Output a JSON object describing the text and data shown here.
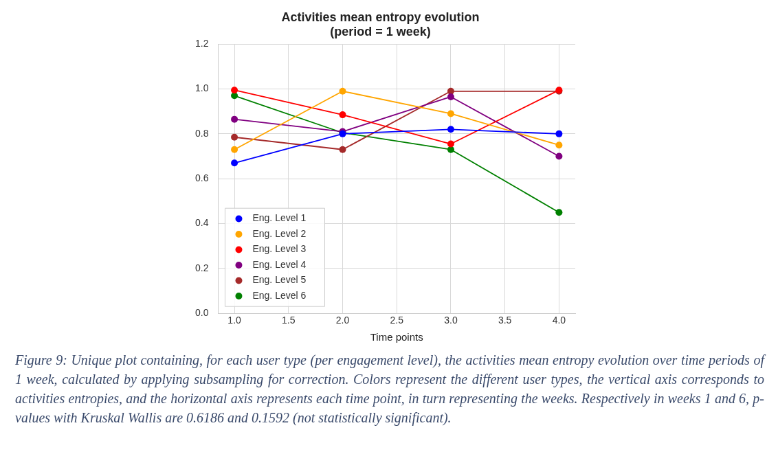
{
  "chart_data": {
    "type": "line",
    "title": "Activities mean entropy evolution\n(period = 1 week)",
    "xlabel": "Time points",
    "x": [
      1,
      2,
      3,
      4
    ],
    "series": [
      {
        "name": "Eng. Level 1",
        "color": "#0000ff",
        "values": [
          0.67,
          0.8,
          0.82,
          0.8
        ]
      },
      {
        "name": "Eng. Level 2",
        "color": "#ffa500",
        "values": [
          0.73,
          0.99,
          0.89,
          0.75
        ]
      },
      {
        "name": "Eng. Level 3",
        "color": "#ff0000",
        "values": [
          0.995,
          0.885,
          0.755,
          0.995
        ]
      },
      {
        "name": "Eng. Level 4",
        "color": "#800080",
        "values": [
          0.865,
          0.81,
          0.965,
          0.7
        ]
      },
      {
        "name": "Eng. Level 5",
        "color": "#a52a2a",
        "values": [
          0.785,
          0.73,
          0.99,
          0.99
        ]
      },
      {
        "name": "Eng. Level 6",
        "color": "#008000",
        "values": [
          0.97,
          0.805,
          0.73,
          0.45
        ]
      }
    ],
    "xlim": [
      0.85,
      4.15
    ],
    "xticks": [
      {
        "value": 1,
        "label": "1.0"
      },
      {
        "value": 1.5,
        "label": "1.5"
      },
      {
        "value": 2,
        "label": "2.0"
      },
      {
        "value": 2.5,
        "label": "2.5"
      },
      {
        "value": 3,
        "label": "3.0"
      },
      {
        "value": 3.5,
        "label": "3.5"
      },
      {
        "value": 4,
        "label": "4.0"
      }
    ],
    "ylim": [
      0,
      1.2
    ],
    "yticks": [
      {
        "value": 0,
        "label": "0.0"
      },
      {
        "value": 0.2,
        "label": "0.2"
      },
      {
        "value": 0.4,
        "label": "0.4"
      },
      {
        "value": 0.6,
        "label": "0.6"
      },
      {
        "value": 0.8,
        "label": "0.8"
      },
      {
        "value": 1,
        "label": "1.0"
      },
      {
        "value": 1.2,
        "label": "1.2"
      }
    ],
    "grid": true,
    "legend": "bottom left",
    "marker": "circle",
    "line_style": "solid",
    "annotations": [
      "Figure 9: Unique plot containing, for each user type (per engagement level), the activities mean entropy evolution over time periods of 1 week, calculated by applying subsampling for correction. Colors represent the different user types, the vertical axis corresponds to activities entropies, and the horizontal axis represents each time point, in turn representing the weeks. Respectively in weeks 1 and 6, p-values with Kruskal Wallis are 0.6186 and 0.1592 (not statistically significant)."
    ]
  }
}
